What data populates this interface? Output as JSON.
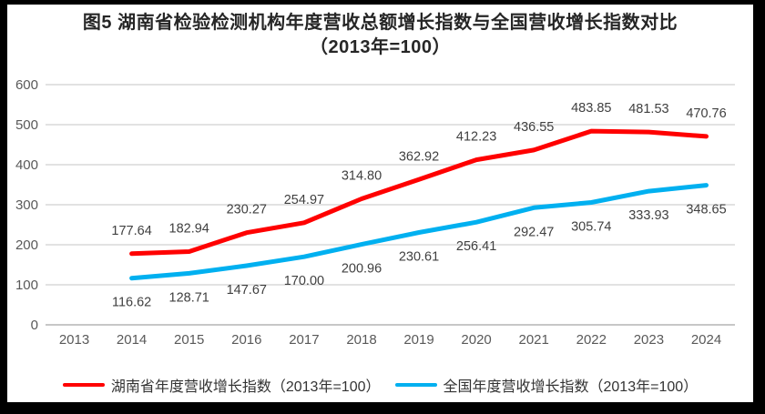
{
  "chart_data": {
    "type": "line",
    "title": "图5 湖南省检验检测机构年度营收总额增长指数与全国营收增长指数对比",
    "subtitle": "（2013年=100）",
    "categories": [
      2013,
      2014,
      2015,
      2016,
      2017,
      2018,
      2019,
      2020,
      2021,
      2022,
      2023,
      2024
    ],
    "ylim": [
      0,
      600
    ],
    "ytick_interval": 100,
    "grid": "horizontal",
    "legend_position": "bottom",
    "series": [
      {
        "name": "湖南省年度营收增长指数（2013年=100）",
        "color": "#FF0000",
        "first_category": 2014,
        "values": [
          177.64,
          182.94,
          230.27,
          254.97,
          314.8,
          362.92,
          412.23,
          436.55,
          483.85,
          481.53,
          470.76
        ],
        "labels": [
          "177.64",
          "182.94",
          "230.27",
          "254.97",
          "314.80",
          "362.92",
          "412.23",
          "436.55",
          "483.85",
          "481.53",
          "470.76"
        ],
        "label_position": "above"
      },
      {
        "name": "全国年度营收增长指数（2013年=100）",
        "color": "#00B0F0",
        "first_category": 2014,
        "values": [
          116.62,
          128.71,
          147.67,
          170.0,
          200.96,
          230.61,
          256.41,
          292.47,
          305.74,
          333.93,
          348.65
        ],
        "labels": [
          "116.62",
          "128.71",
          "147.67",
          "170.00",
          "200.96",
          "230.61",
          "256.41",
          "292.47",
          "305.74",
          "333.93",
          "348.65"
        ],
        "label_position": "below"
      }
    ],
    "colors": {
      "gridline": "#D9D9D9",
      "axis_line": "#BFBFBF",
      "tick_label": "#595959",
      "data_label": "#404040",
      "title": "#262626",
      "legend_text": "#333333",
      "frame_border": "#000000",
      "background": "#FFFFFF"
    }
  }
}
